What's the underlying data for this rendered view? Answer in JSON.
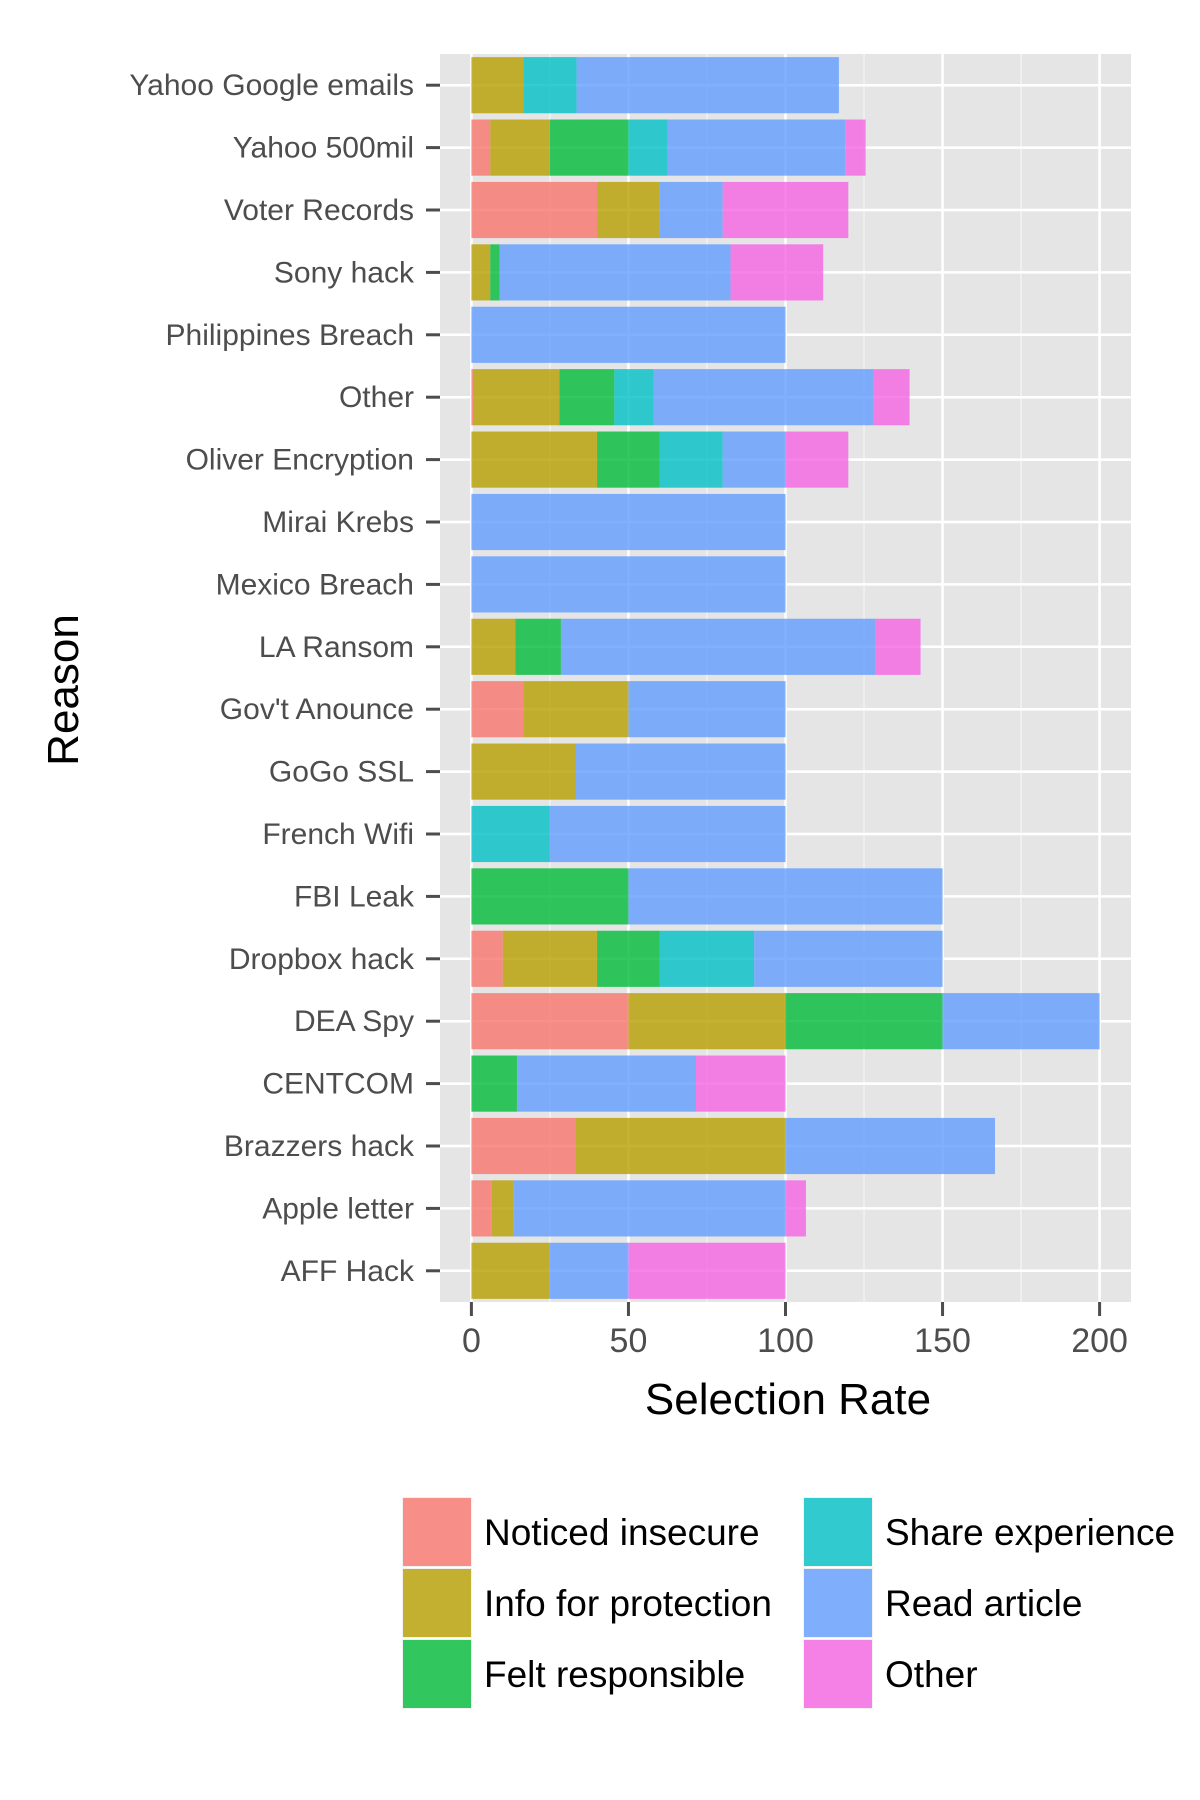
{
  "chart_data": {
    "type": "bar",
    "orientation": "horizontal",
    "stacked": true,
    "xlabel": "Selection Rate",
    "ylabel": "Reason",
    "xlim": [
      -10,
      210
    ],
    "xticks": [
      0,
      50,
      100,
      150,
      200
    ],
    "grid": true,
    "legend_position": "bottom",
    "categories": [
      "Yahoo Google emails",
      "Yahoo 500mil",
      "Voter Records",
      "Sony hack",
      "Philippines Breach",
      "Other",
      "Oliver Encryption",
      "Mirai Krebs",
      "Mexico Breach",
      "LA Ransom",
      "Gov't Anounce",
      "GoGo SSL",
      "French Wifi",
      "FBI Leak",
      "Dropbox hack",
      "DEA Spy",
      "CENTCOM",
      "Brazzers hack",
      "Apple letter",
      "AFF Hack"
    ],
    "series": [
      {
        "name": "Noticed insecure",
        "color": "#F8766D",
        "values": [
          0,
          6,
          40,
          0,
          0,
          0.5,
          0,
          0,
          0,
          0,
          16.5,
          0,
          0,
          0,
          10,
          50,
          0,
          33.3,
          6.5,
          0
        ]
      },
      {
        "name": "Info for protection",
        "color": "#B79F00",
        "values": [
          16.5,
          19,
          20,
          6,
          0,
          27.5,
          40,
          0,
          0,
          14,
          33.5,
          33.3,
          0,
          0,
          30,
          50,
          0,
          66.7,
          7,
          25
        ]
      },
      {
        "name": "Felt responsible",
        "color": "#00BA38",
        "values": [
          0,
          25,
          0,
          3,
          0,
          17.5,
          20,
          0,
          0,
          14.5,
          0,
          0,
          0,
          50,
          20,
          50,
          14.5,
          0,
          0,
          0
        ]
      },
      {
        "name": "Share experience",
        "color": "#00BFC4",
        "values": [
          17,
          12.5,
          0,
          0,
          0,
          12.5,
          20,
          0,
          0,
          0,
          0,
          0,
          25,
          0,
          30,
          0,
          0,
          0,
          0,
          0
        ]
      },
      {
        "name": "Read article",
        "color": "#619CFF",
        "values": [
          83.5,
          56.5,
          20,
          73.5,
          100,
          70,
          20,
          100,
          100,
          100,
          50,
          66.7,
          75,
          100,
          60,
          50,
          57,
          66.7,
          86.5,
          25
        ]
      },
      {
        "name": "Other",
        "color": "#F564E3",
        "values": [
          0,
          6.5,
          40,
          29.5,
          0,
          11.5,
          20,
          0,
          0,
          14.5,
          0,
          0,
          0,
          0,
          0,
          0,
          28.5,
          0,
          6.5,
          50
        ]
      }
    ]
  }
}
